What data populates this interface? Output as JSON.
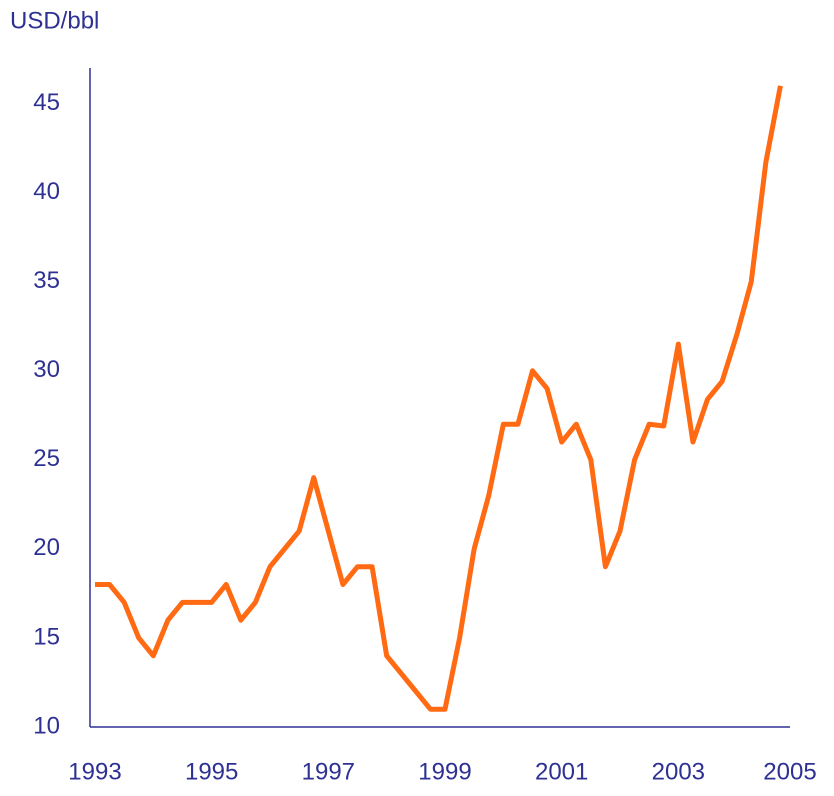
{
  "chart_data": {
    "type": "line",
    "y_label": "USD/bbl",
    "x": [
      1993,
      1993.25,
      1993.5,
      1993.75,
      1994,
      1994.25,
      1994.5,
      1994.75,
      1995,
      1995.25,
      1995.5,
      1995.75,
      1996,
      1996.25,
      1996.5,
      1996.75,
      1997,
      1997.25,
      1997.5,
      1997.75,
      1998,
      1998.25,
      1998.5,
      1998.75,
      1999,
      1999.25,
      1999.5,
      1999.75,
      2000,
      2000.25,
      2000.5,
      2000.75,
      2001,
      2001.25,
      2001.5,
      2001.75,
      2002,
      2002.25,
      2002.5,
      2002.75,
      2003,
      2003.25,
      2003.5,
      2003.75,
      2004,
      2004.25,
      2004.5,
      2004.75
    ],
    "series": [
      {
        "color": "#ff6a13",
        "values": [
          18,
          18,
          17,
          15,
          14,
          16,
          17,
          17,
          17,
          18,
          16,
          17,
          19,
          20,
          21,
          24,
          21,
          18,
          19,
          19,
          14,
          13,
          12,
          11,
          11,
          15,
          20,
          23,
          27,
          27,
          30,
          29,
          26,
          27,
          25,
          19,
          21,
          25,
          27,
          26.9,
          31.5,
          26,
          28.4,
          29.4,
          32,
          35,
          41.7,
          46
        ]
      }
    ],
    "xlim": [
      1993,
      2005
    ],
    "xticks": [
      1993,
      1995,
      1997,
      1999,
      2001,
      2003,
      2005
    ],
    "ylim": [
      10,
      47
    ],
    "yticks": [
      10,
      15,
      20,
      25,
      30,
      35,
      40,
      45
    ],
    "grid": false,
    "axis_color": "#2e3192"
  }
}
